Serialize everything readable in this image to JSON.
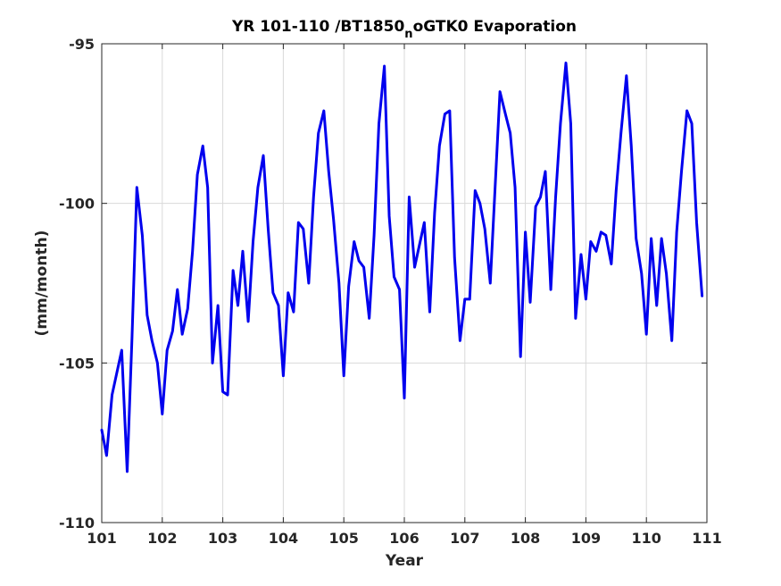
{
  "chart_data": {
    "type": "line",
    "title": {
      "pre": "YR 101-110 /BT1850",
      "sub": "n",
      "post": "oGTK0 Evaporation"
    },
    "xlabel": "Year",
    "ylabel": "(mm/month)",
    "xlim": [
      101,
      111
    ],
    "ylim": [
      -110,
      -95
    ],
    "xticks": [
      101,
      102,
      103,
      104,
      105,
      106,
      107,
      108,
      109,
      110,
      111
    ],
    "xtick_labels": [
      "101",
      "102",
      "103",
      "104",
      "105",
      "106",
      "107",
      "108",
      "109",
      "110",
      "111"
    ],
    "yticks": [
      -110,
      -105,
      -100,
      -95
    ],
    "ytick_labels": [
      "-110",
      "-105",
      "-100",
      "-95"
    ],
    "grid": true,
    "colors": {
      "line": "#0000ee"
    },
    "series": [
      {
        "x": [
          101.0,
          101.08,
          101.17,
          101.25,
          101.33,
          101.42,
          101.5,
          101.58,
          101.67,
          101.75,
          101.83,
          101.92,
          102.0,
          102.08,
          102.17,
          102.25,
          102.33,
          102.42,
          102.5,
          102.58,
          102.67,
          102.75,
          102.83,
          102.92,
          103.0,
          103.08,
          103.17,
          103.25,
          103.33,
          103.42,
          103.5,
          103.58,
          103.67,
          103.75,
          103.83,
          103.92,
          104.0,
          104.08,
          104.17,
          104.25,
          104.33,
          104.42,
          104.5,
          104.58,
          104.67,
          104.75,
          104.83,
          104.92,
          105.0,
          105.08,
          105.17,
          105.25,
          105.33,
          105.42,
          105.5,
          105.58,
          105.67,
          105.75,
          105.83,
          105.92,
          106.0,
          106.08,
          106.17,
          106.25,
          106.33,
          106.42,
          106.5,
          106.58,
          106.67,
          106.75,
          106.83,
          106.92,
          107.0,
          107.08,
          107.17,
          107.25,
          107.33,
          107.42,
          107.5,
          107.58,
          107.67,
          107.75,
          107.83,
          107.92,
          108.0,
          108.08,
          108.17,
          108.25,
          108.33,
          108.42,
          108.5,
          108.58,
          108.67,
          108.75,
          108.83,
          108.92,
          109.0,
          109.08,
          109.17,
          109.25,
          109.33,
          109.42,
          109.5,
          109.58,
          109.67,
          109.75,
          109.83,
          109.92,
          110.0,
          110.08,
          110.17,
          110.25,
          110.33,
          110.42,
          110.5,
          110.58,
          110.67,
          110.75,
          110.83,
          110.92
        ],
        "y": [
          -107.1,
          -107.9,
          -106.0,
          -105.3,
          -104.6,
          -108.4,
          -104.2,
          -99.5,
          -101.0,
          -103.5,
          -104.3,
          -105.0,
          -106.6,
          -104.6,
          -104.0,
          -102.7,
          -104.1,
          -103.3,
          -101.5,
          -99.1,
          -98.2,
          -99.5,
          -105.0,
          -103.2,
          -105.9,
          -106.0,
          -102.1,
          -103.2,
          -101.5,
          -103.7,
          -101.2,
          -99.5,
          -98.5,
          -100.8,
          -102.8,
          -103.2,
          -105.4,
          -102.8,
          -103.4,
          -100.6,
          -100.8,
          -102.5,
          -99.8,
          -97.8,
          -97.1,
          -99.0,
          -100.5,
          -102.5,
          -105.4,
          -102.6,
          -101.2,
          -101.8,
          -102.0,
          -103.6,
          -101.0,
          -97.5,
          -95.7,
          -100.4,
          -102.3,
          -102.7,
          -106.1,
          -99.8,
          -102.0,
          -101.3,
          -100.6,
          -103.4,
          -100.3,
          -98.2,
          -97.2,
          -97.1,
          -101.7,
          -104.3,
          -103.0,
          -103.0,
          -99.6,
          -100.0,
          -100.8,
          -102.5,
          -99.5,
          -96.5,
          -97.2,
          -97.8,
          -99.5,
          -104.8,
          -100.9,
          -103.1,
          -100.1,
          -99.8,
          -99.0,
          -102.7,
          -99.8,
          -97.5,
          -95.6,
          -97.5,
          -103.6,
          -101.6,
          -103.0,
          -101.2,
          -101.5,
          -100.9,
          -101.0,
          -101.9,
          -99.6,
          -97.8,
          -96.0,
          -98.2,
          -101.1,
          -102.2,
          -104.1,
          -101.1,
          -103.2,
          -101.1,
          -102.2,
          -104.3,
          -100.9,
          -99.0,
          -97.1,
          -97.5,
          -100.6,
          -102.9
        ]
      }
    ]
  }
}
